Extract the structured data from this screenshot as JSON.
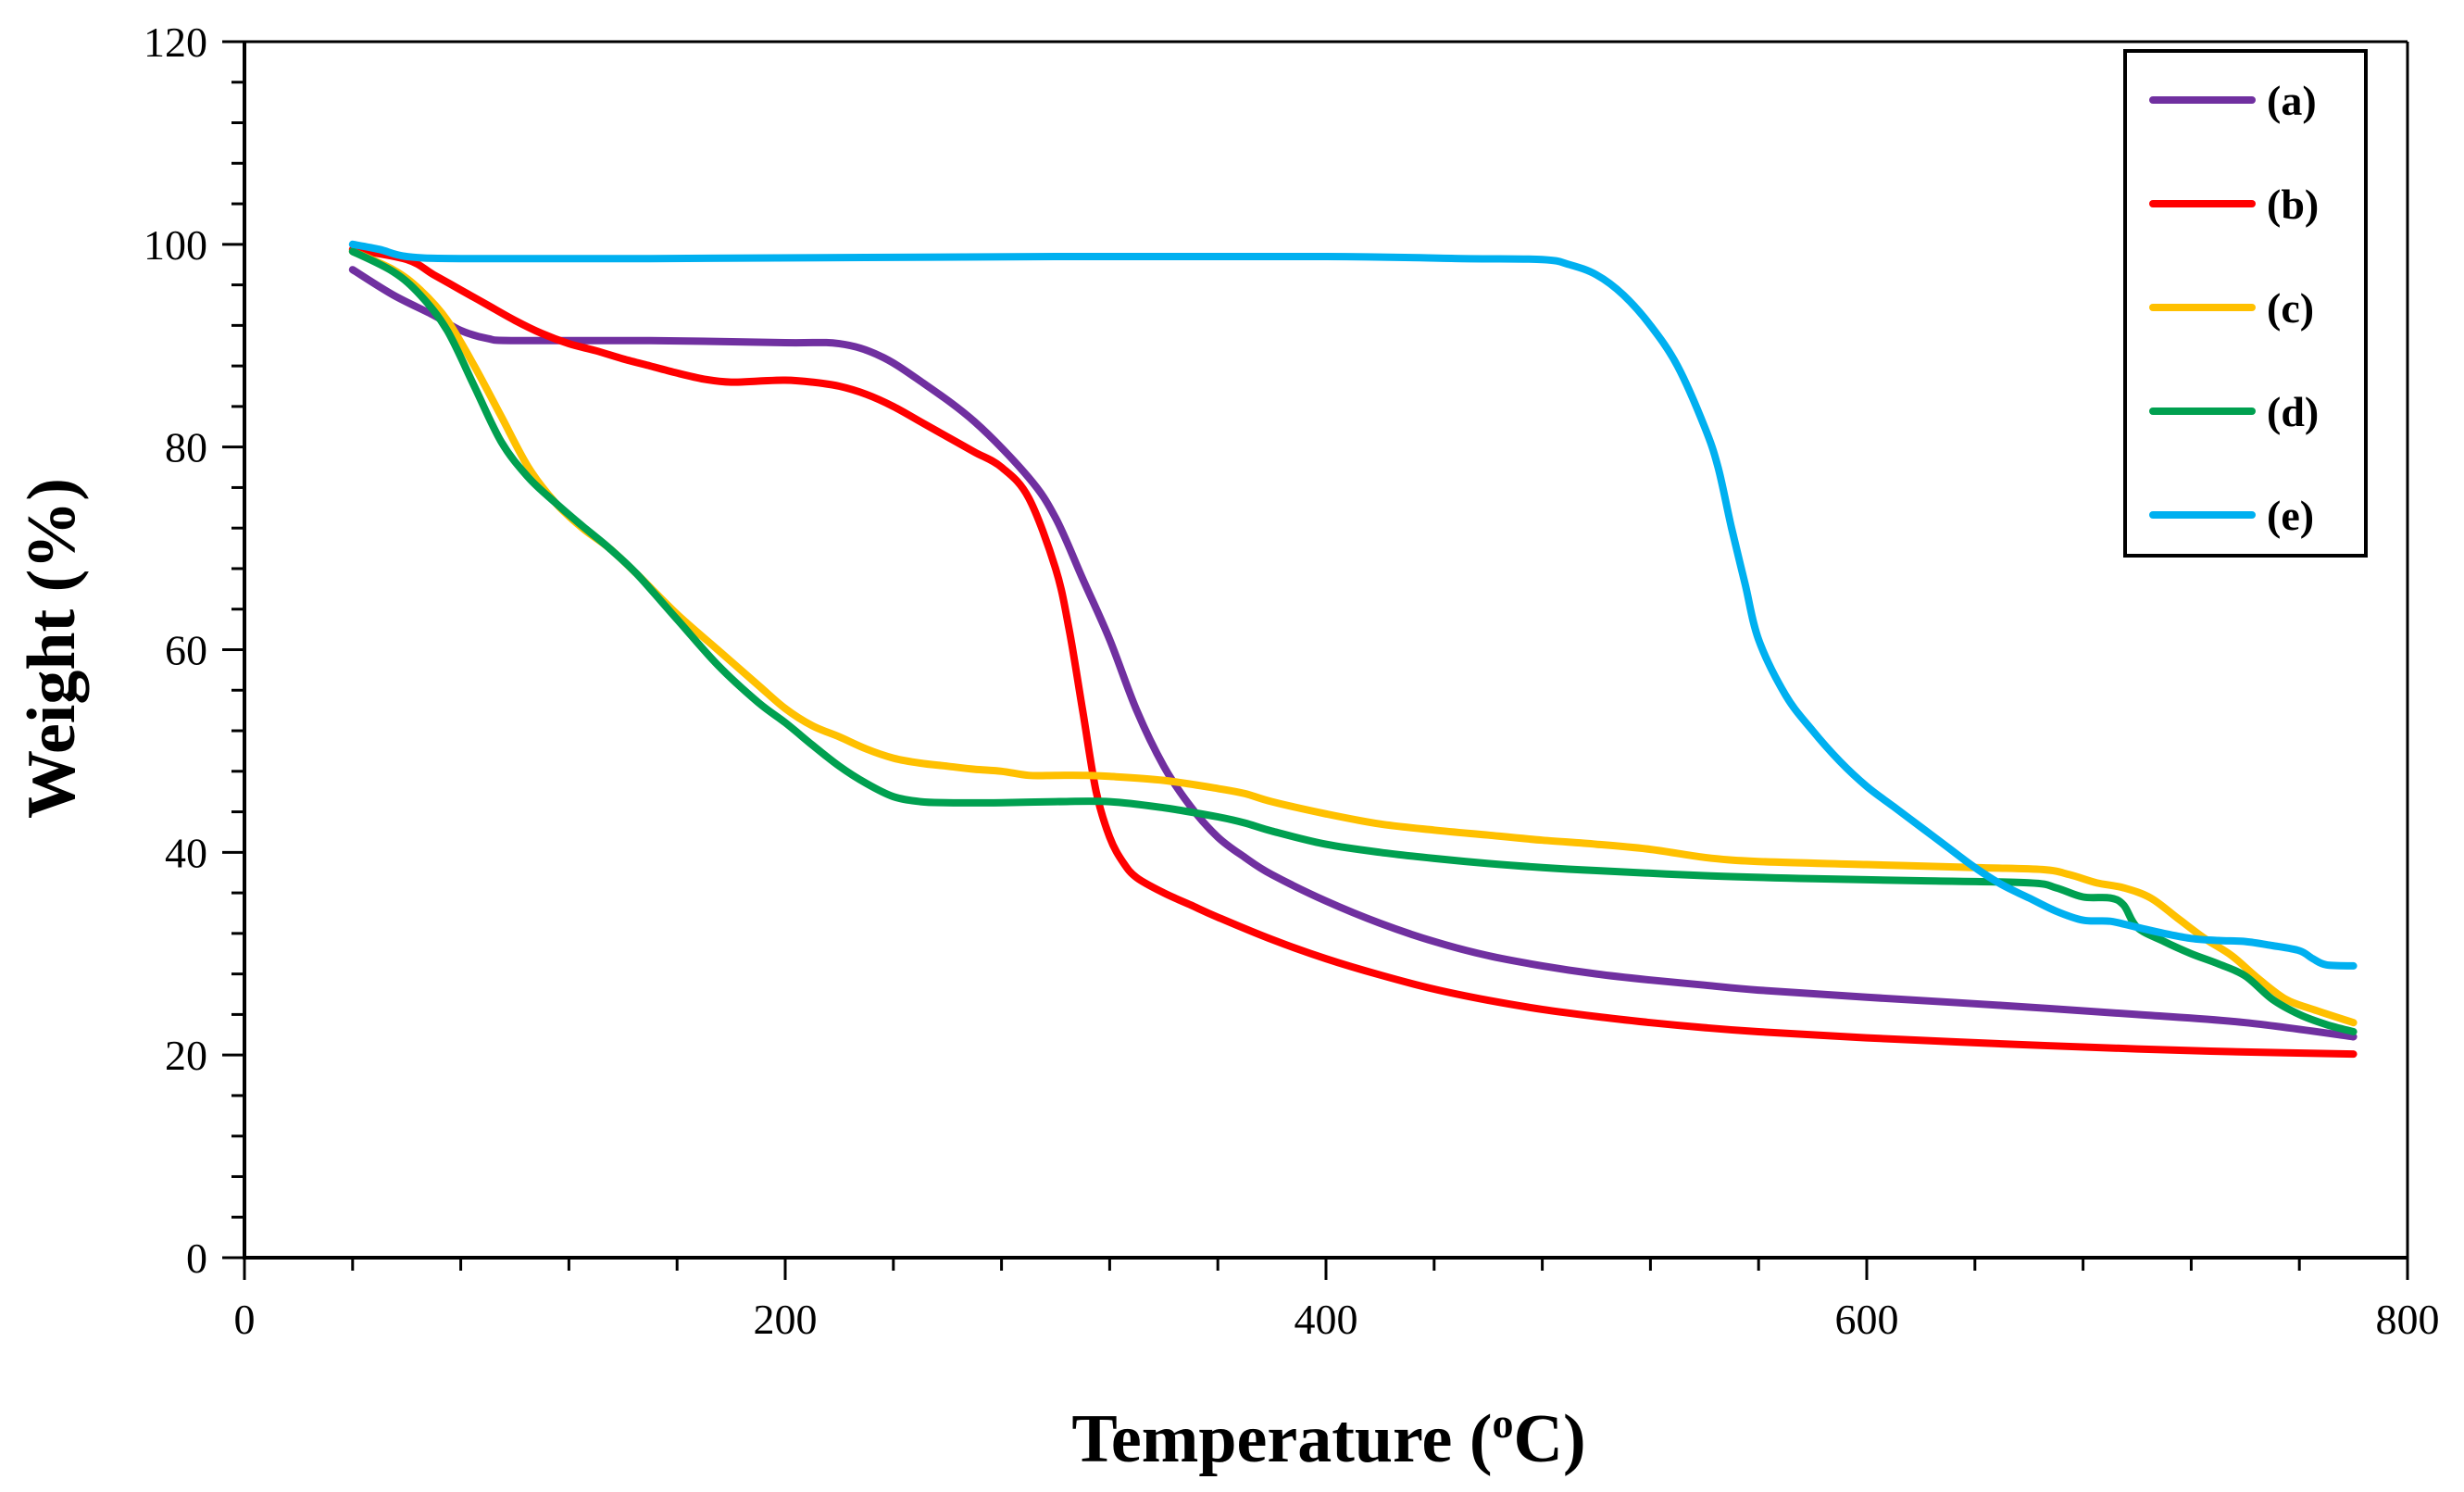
{
  "chart_data": {
    "type": "line",
    "title": "",
    "xlabel": "Temperature (",
    "xlabel_sup": "o",
    "xlabel_unit": "C)",
    "ylabel": "Weight (%)",
    "xlim": [
      0,
      800
    ],
    "ylim": [
      0,
      120
    ],
    "x_ticks": [
      0,
      200,
      400,
      600,
      800
    ],
    "x_tick_labels": [
      "0",
      "200",
      "400",
      "600",
      "800"
    ],
    "x_minor_step": 40,
    "y_ticks": [
      0,
      20,
      40,
      60,
      80,
      100,
      120
    ],
    "y_tick_labels": [
      "0",
      "20",
      "40",
      "60",
      "80",
      "100",
      "120"
    ],
    "y_minor_step": 4,
    "grid": false,
    "legend_position": "top-right",
    "series": [
      {
        "name": "(a)",
        "color": "#7030A0",
        "points": [
          [
            40,
            97.5
          ],
          [
            55,
            95
          ],
          [
            70,
            93
          ],
          [
            80,
            91.5
          ],
          [
            90,
            90.7
          ],
          [
            100,
            90.5
          ],
          [
            150,
            90.5
          ],
          [
            200,
            90.3
          ],
          [
            220,
            90.2
          ],
          [
            235,
            89
          ],
          [
            250,
            86.5
          ],
          [
            270,
            82.5
          ],
          [
            290,
            77
          ],
          [
            300,
            73
          ],
          [
            310,
            67
          ],
          [
            320,
            61
          ],
          [
            330,
            54
          ],
          [
            340,
            48.5
          ],
          [
            350,
            44.5
          ],
          [
            360,
            41.5
          ],
          [
            370,
            39.5
          ],
          [
            380,
            37.8
          ],
          [
            400,
            35.2
          ],
          [
            420,
            33
          ],
          [
            440,
            31.2
          ],
          [
            460,
            29.8
          ],
          [
            480,
            28.8
          ],
          [
            500,
            28
          ],
          [
            520,
            27.4
          ],
          [
            540,
            26.9
          ],
          [
            560,
            26.4
          ],
          [
            600,
            25.7
          ],
          [
            650,
            24.9
          ],
          [
            700,
            24
          ],
          [
            740,
            23.2
          ],
          [
            780,
            21.8
          ]
        ]
      },
      {
        "name": "(b)",
        "color": "#FF0000",
        "points": [
          [
            40,
            99.5
          ],
          [
            60,
            98.5
          ],
          [
            70,
            97
          ],
          [
            80,
            95.5
          ],
          [
            90,
            94
          ],
          [
            100,
            92.5
          ],
          [
            110,
            91.2
          ],
          [
            120,
            90.2
          ],
          [
            130,
            89.5
          ],
          [
            140,
            88.7
          ],
          [
            150,
            88
          ],
          [
            160,
            87.3
          ],
          [
            170,
            86.7
          ],
          [
            180,
            86.4
          ],
          [
            190,
            86.5
          ],
          [
            200,
            86.6
          ],
          [
            210,
            86.4
          ],
          [
            220,
            86
          ],
          [
            230,
            85.2
          ],
          [
            240,
            84
          ],
          [
            250,
            82.5
          ],
          [
            260,
            81
          ],
          [
            270,
            79.5
          ],
          [
            280,
            78
          ],
          [
            290,
            75
          ],
          [
            300,
            68
          ],
          [
            305,
            62
          ],
          [
            310,
            54
          ],
          [
            315,
            46
          ],
          [
            320,
            41.5
          ],
          [
            325,
            39
          ],
          [
            330,
            37.5
          ],
          [
            340,
            36
          ],
          [
            350,
            34.8
          ],
          [
            360,
            33.6
          ],
          [
            380,
            31.4
          ],
          [
            400,
            29.5
          ],
          [
            420,
            27.9
          ],
          [
            440,
            26.5
          ],
          [
            460,
            25.4
          ],
          [
            480,
            24.5
          ],
          [
            500,
            23.8
          ],
          [
            520,
            23.2
          ],
          [
            540,
            22.7
          ],
          [
            560,
            22.3
          ],
          [
            600,
            21.7
          ],
          [
            650,
            21.1
          ],
          [
            700,
            20.6
          ],
          [
            740,
            20.3
          ],
          [
            780,
            20.1
          ]
        ]
      },
      {
        "name": "(c)",
        "color": "#FFC000",
        "points": [
          [
            40,
            99.3
          ],
          [
            55,
            97.5
          ],
          [
            65,
            95.5
          ],
          [
            75,
            92.5
          ],
          [
            85,
            88
          ],
          [
            95,
            83
          ],
          [
            105,
            78
          ],
          [
            115,
            74.5
          ],
          [
            125,
            72
          ],
          [
            135,
            70
          ],
          [
            145,
            67.5
          ],
          [
            160,
            63.5
          ],
          [
            175,
            60
          ],
          [
            190,
            56.5
          ],
          [
            200,
            54.2
          ],
          [
            210,
            52.5
          ],
          [
            220,
            51.4
          ],
          [
            230,
            50.2
          ],
          [
            240,
            49.3
          ],
          [
            250,
            48.8
          ],
          [
            260,
            48.5
          ],
          [
            270,
            48.2
          ],
          [
            280,
            48
          ],
          [
            290,
            47.6
          ],
          [
            300,
            47.6
          ],
          [
            310,
            47.6
          ],
          [
            320,
            47.5
          ],
          [
            340,
            47.1
          ],
          [
            360,
            46.3
          ],
          [
            370,
            45.8
          ],
          [
            380,
            45
          ],
          [
            400,
            43.8
          ],
          [
            420,
            42.8
          ],
          [
            440,
            42.2
          ],
          [
            460,
            41.7
          ],
          [
            480,
            41.2
          ],
          [
            500,
            40.8
          ],
          [
            520,
            40.3
          ],
          [
            540,
            39.5
          ],
          [
            560,
            39.1
          ],
          [
            600,
            38.8
          ],
          [
            640,
            38.5
          ],
          [
            665,
            38.3
          ],
          [
            675,
            37.8
          ],
          [
            685,
            37
          ],
          [
            695,
            36.5
          ],
          [
            705,
            35.5
          ],
          [
            715,
            33.5
          ],
          [
            725,
            31.5
          ],
          [
            735,
            29.8
          ],
          [
            745,
            27.5
          ],
          [
            755,
            25.5
          ],
          [
            765,
            24.5
          ],
          [
            780,
            23.2
          ]
        ]
      },
      {
        "name": "(d)",
        "color": "#00A050",
        "points": [
          [
            40,
            99.3
          ],
          [
            55,
            97.3
          ],
          [
            65,
            95
          ],
          [
            75,
            91.5
          ],
          [
            85,
            86
          ],
          [
            95,
            80.5
          ],
          [
            105,
            77
          ],
          [
            115,
            74.5
          ],
          [
            125,
            72.2
          ],
          [
            135,
            70
          ],
          [
            145,
            67.5
          ],
          [
            160,
            63
          ],
          [
            175,
            58.5
          ],
          [
            190,
            54.8
          ],
          [
            200,
            52.8
          ],
          [
            210,
            50.6
          ],
          [
            220,
            48.5
          ],
          [
            230,
            46.8
          ],
          [
            240,
            45.5
          ],
          [
            250,
            45
          ],
          [
            260,
            44.9
          ],
          [
            280,
            44.9
          ],
          [
            300,
            45
          ],
          [
            320,
            45
          ],
          [
            340,
            44.4
          ],
          [
            360,
            43.5
          ],
          [
            370,
            42.9
          ],
          [
            380,
            42.1
          ],
          [
            400,
            40.8
          ],
          [
            420,
            40
          ],
          [
            440,
            39.4
          ],
          [
            460,
            38.9
          ],
          [
            480,
            38.5
          ],
          [
            500,
            38.2
          ],
          [
            540,
            37.7
          ],
          [
            580,
            37.4
          ],
          [
            620,
            37.2
          ],
          [
            660,
            37
          ],
          [
            670,
            36.5
          ],
          [
            680,
            35.6
          ],
          [
            690,
            35.5
          ],
          [
            695,
            34.8
          ],
          [
            700,
            32.6
          ],
          [
            710,
            31.2
          ],
          [
            720,
            30
          ],
          [
            730,
            29
          ],
          [
            740,
            27.8
          ],
          [
            750,
            25.5
          ],
          [
            760,
            24
          ],
          [
            770,
            23
          ],
          [
            780,
            22.3
          ]
        ]
      },
      {
        "name": "(e)",
        "color": "#00B0F0",
        "points": [
          [
            40,
            100
          ],
          [
            50,
            99.5
          ],
          [
            60,
            98.8
          ],
          [
            80,
            98.6
          ],
          [
            150,
            98.6
          ],
          [
            300,
            98.8
          ],
          [
            400,
            98.8
          ],
          [
            450,
            98.6
          ],
          [
            480,
            98.5
          ],
          [
            490,
            98
          ],
          [
            500,
            97
          ],
          [
            510,
            95
          ],
          [
            520,
            92
          ],
          [
            530,
            88
          ],
          [
            540,
            82
          ],
          [
            545,
            78
          ],
          [
            550,
            72
          ],
          [
            555,
            66.5
          ],
          [
            560,
            61
          ],
          [
            570,
            55.5
          ],
          [
            580,
            52
          ],
          [
            590,
            49
          ],
          [
            600,
            46.5
          ],
          [
            610,
            44.5
          ],
          [
            620,
            42.5
          ],
          [
            630,
            40.5
          ],
          [
            640,
            38.5
          ],
          [
            650,
            36.8
          ],
          [
            660,
            35.5
          ],
          [
            670,
            34.2
          ],
          [
            680,
            33.3
          ],
          [
            690,
            33.2
          ],
          [
            700,
            32.6
          ],
          [
            710,
            32
          ],
          [
            720,
            31.5
          ],
          [
            730,
            31.3
          ],
          [
            740,
            31.2
          ],
          [
            750,
            30.8
          ],
          [
            760,
            30.3
          ],
          [
            765,
            29.5
          ],
          [
            770,
            28.9
          ],
          [
            780,
            28.8
          ]
        ]
      }
    ]
  }
}
